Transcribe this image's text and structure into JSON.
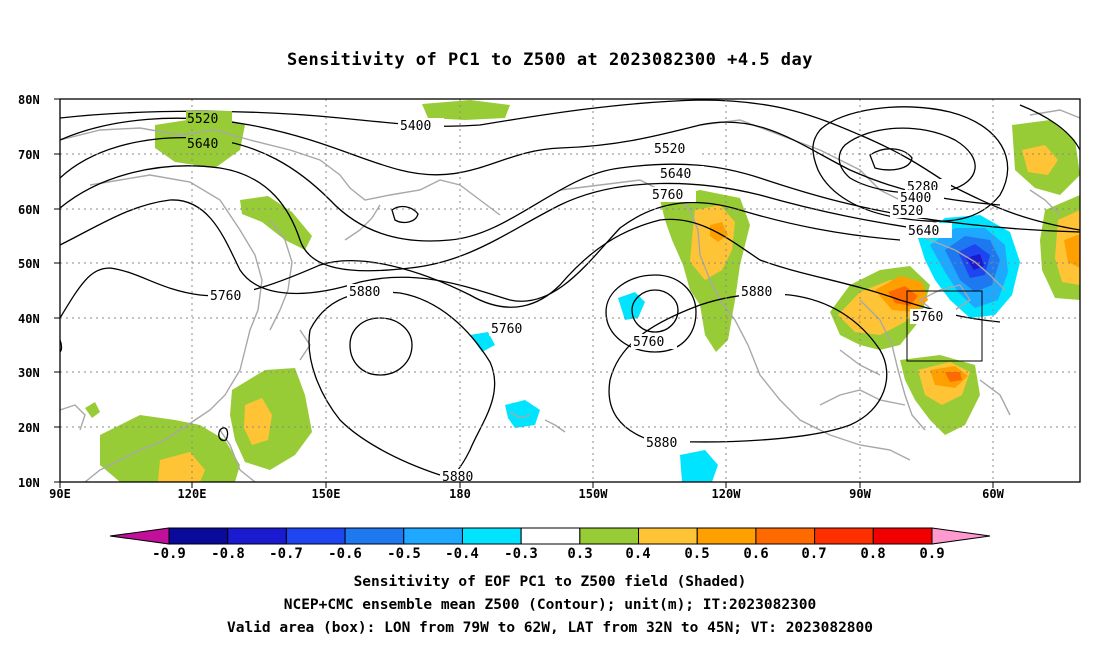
{
  "title": "Sensitivity of PC1 to Z500 at 2023082300 +4.5 day",
  "lat_labels": [
    "80N",
    "70N",
    "60N",
    "50N",
    "40N",
    "30N",
    "20N",
    "10N"
  ],
  "lon_labels": [
    "90E",
    "120E",
    "150E",
    "180",
    "150W",
    "120W",
    "90W",
    "60W"
  ],
  "contour_labels": {
    "c5520_a": "5520",
    "c5640_a": "5640",
    "c5400_a": "5400",
    "c5520_b": "5520",
    "c5640_b": "5640",
    "c5760_a": "5760",
    "c5280": "5280",
    "c5400_b": "5400",
    "c5520_c": "5520",
    "c5640_c": "5640",
    "c5760_b": "5760",
    "c5880_a": "5880",
    "c5760_c": "5760",
    "c5760_d": "5760",
    "c5880_b": "5880",
    "c5760_e": "5760",
    "c5880_c": "5880",
    "c5880_d": "5880"
  },
  "colorbar": {
    "labels": [
      "-0.9",
      "-0.8",
      "-0.7",
      "-0.6",
      "-0.5",
      "-0.4",
      "-0.3",
      "0.3",
      "0.4",
      "0.5",
      "0.6",
      "0.7",
      "0.8",
      "0.9"
    ],
    "colors": [
      "#0a0a9a",
      "#1a1ad0",
      "#1e46f0",
      "#1e78f0",
      "#1ea8ff",
      "#00e4ff",
      "#ffffff",
      "#98cc36",
      "#ffc436",
      "#ffa000",
      "#ff6a00",
      "#ff3000",
      "#f00000"
    ],
    "low_color": "#c0109a",
    "high_color": "#ff9ad0"
  },
  "captions": [
    "Sensitivity of EOF PC1 to Z500 field (Shaded)",
    "NCEP+CMC ensemble mean Z500 (Contour); unit(m); IT:2023082300",
    "Valid area (box): LON from 79W to 62W, LAT from 32N to 45N; VT: 2023082800"
  ]
}
